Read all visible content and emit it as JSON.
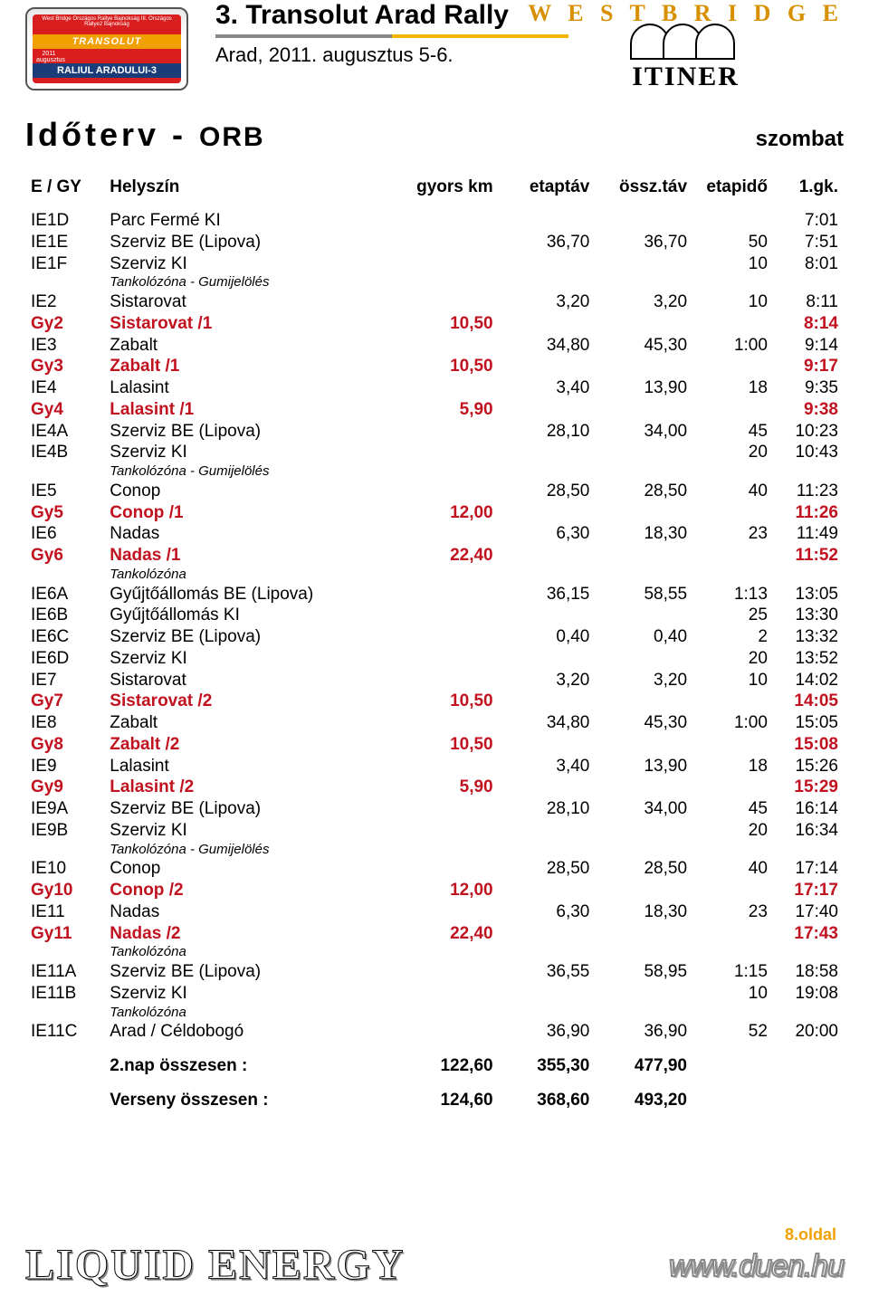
{
  "header": {
    "badge": {
      "banner": "West Bridge Országos Rallye Bajnokság III. Országos Rallye2 Bajnokság",
      "mid": "TRANSOLUT",
      "date": "2011 augusztus 5-6",
      "bottom": "RALIUL ARADULUI-3"
    },
    "event_title": "3. Transolut Arad Rally",
    "event_sub": "Arad, 2011. augusztus 5-6.",
    "wb_mark": "W E S T  B R I D G E",
    "wb_itiner": "ITINER"
  },
  "section": {
    "title_main": "Időterv",
    "title_sep": " - ",
    "title_sub": "ORB",
    "day": "szombat"
  },
  "columns": [
    "E / GY",
    "Helyszín",
    "gyors km",
    "etaptáv",
    "össz.táv",
    "etapidő",
    "1.gk."
  ],
  "rows": [
    {
      "t": "n",
      "code": "IE1D",
      "loc": "Parc Fermé KI",
      "km": "",
      "et": "",
      "ot": "",
      "ei": "",
      "gk": "7:01"
    },
    {
      "t": "n",
      "code": "IE1E",
      "loc": "Szerviz BE (Lipova)",
      "km": "",
      "et": "36,70",
      "ot": "36,70",
      "ei": "50",
      "gk": "7:51"
    },
    {
      "t": "n",
      "code": "IE1F",
      "loc": "Szerviz KI",
      "km": "",
      "et": "",
      "ot": "",
      "ei": "10",
      "gk": "8:01"
    },
    {
      "t": "note",
      "loc": "Tankolózóna - Gumijelölés"
    },
    {
      "t": "n",
      "code": "IE2",
      "loc": "Sistarovat",
      "km": "",
      "et": "3,20",
      "ot": "3,20",
      "ei": "10",
      "gk": "8:11"
    },
    {
      "t": "s",
      "code": "Gy2",
      "loc": "Sistarovat /1",
      "km": "10,50",
      "et": "",
      "ot": "",
      "ei": "",
      "gk": "8:14"
    },
    {
      "t": "n",
      "code": "IE3",
      "loc": "Zabalt",
      "km": "",
      "et": "34,80",
      "ot": "45,30",
      "ei": "1:00",
      "gk": "9:14"
    },
    {
      "t": "s",
      "code": "Gy3",
      "loc": "Zabalt /1",
      "km": "10,50",
      "et": "",
      "ot": "",
      "ei": "",
      "gk": "9:17"
    },
    {
      "t": "n",
      "code": "IE4",
      "loc": "Lalasint",
      "km": "",
      "et": "3,40",
      "ot": "13,90",
      "ei": "18",
      "gk": "9:35"
    },
    {
      "t": "s",
      "code": "Gy4",
      "loc": "Lalasint /1",
      "km": "5,90",
      "et": "",
      "ot": "",
      "ei": "",
      "gk": "9:38"
    },
    {
      "t": "n",
      "code": "IE4A",
      "loc": "Szerviz BE (Lipova)",
      "km": "",
      "et": "28,10",
      "ot": "34,00",
      "ei": "45",
      "gk": "10:23"
    },
    {
      "t": "n",
      "code": "IE4B",
      "loc": "Szerviz KI",
      "km": "",
      "et": "",
      "ot": "",
      "ei": "20",
      "gk": "10:43"
    },
    {
      "t": "note",
      "loc": "Tankolózóna - Gumijelölés"
    },
    {
      "t": "n",
      "code": "IE5",
      "loc": "Conop",
      "km": "",
      "et": "28,50",
      "ot": "28,50",
      "ei": "40",
      "gk": "11:23"
    },
    {
      "t": "s",
      "code": "Gy5",
      "loc": "Conop /1",
      "km": "12,00",
      "et": "",
      "ot": "",
      "ei": "",
      "gk": "11:26"
    },
    {
      "t": "n",
      "code": "IE6",
      "loc": "Nadas",
      "km": "",
      "et": "6,30",
      "ot": "18,30",
      "ei": "23",
      "gk": "11:49"
    },
    {
      "t": "s",
      "code": "Gy6",
      "loc": "Nadas /1",
      "km": "22,40",
      "et": "",
      "ot": "",
      "ei": "",
      "gk": "11:52"
    },
    {
      "t": "note",
      "loc": "Tankolózóna"
    },
    {
      "t": "n",
      "code": "IE6A",
      "loc": "Gyűjtőállomás BE (Lipova)",
      "km": "",
      "et": "36,15",
      "ot": "58,55",
      "ei": "1:13",
      "gk": "13:05"
    },
    {
      "t": "n",
      "code": "IE6B",
      "loc": "Gyűjtőállomás KI",
      "km": "",
      "et": "",
      "ot": "",
      "ei": "25",
      "gk": "13:30"
    },
    {
      "t": "n",
      "code": "IE6C",
      "loc": "Szerviz BE (Lipova)",
      "km": "",
      "et": "0,40",
      "ot": "0,40",
      "ei": "2",
      "gk": "13:32"
    },
    {
      "t": "n",
      "code": "IE6D",
      "loc": "Szerviz KI",
      "km": "",
      "et": "",
      "ot": "",
      "ei": "20",
      "gk": "13:52"
    },
    {
      "t": "n",
      "code": "IE7",
      "loc": "Sistarovat",
      "km": "",
      "et": "3,20",
      "ot": "3,20",
      "ei": "10",
      "gk": "14:02"
    },
    {
      "t": "s",
      "code": "Gy7",
      "loc": "Sistarovat /2",
      "km": "10,50",
      "et": "",
      "ot": "",
      "ei": "",
      "gk": "14:05"
    },
    {
      "t": "n",
      "code": "IE8",
      "loc": "Zabalt",
      "km": "",
      "et": "34,80",
      "ot": "45,30",
      "ei": "1:00",
      "gk": "15:05"
    },
    {
      "t": "s",
      "code": "Gy8",
      "loc": "Zabalt /2",
      "km": "10,50",
      "et": "",
      "ot": "",
      "ei": "",
      "gk": "15:08"
    },
    {
      "t": "n",
      "code": "IE9",
      "loc": "Lalasint",
      "km": "",
      "et": "3,40",
      "ot": "13,90",
      "ei": "18",
      "gk": "15:26"
    },
    {
      "t": "s",
      "code": "Gy9",
      "loc": "Lalasint /2",
      "km": "5,90",
      "et": "",
      "ot": "",
      "ei": "",
      "gk": "15:29"
    },
    {
      "t": "n",
      "code": "IE9A",
      "loc": "Szerviz BE (Lipova)",
      "km": "",
      "et": "28,10",
      "ot": "34,00",
      "ei": "45",
      "gk": "16:14"
    },
    {
      "t": "n",
      "code": "IE9B",
      "loc": "Szerviz KI",
      "km": "",
      "et": "",
      "ot": "",
      "ei": "20",
      "gk": "16:34"
    },
    {
      "t": "note",
      "loc": "Tankolózóna - Gumijelölés"
    },
    {
      "t": "n",
      "code": "IE10",
      "loc": "Conop",
      "km": "",
      "et": "28,50",
      "ot": "28,50",
      "ei": "40",
      "gk": "17:14"
    },
    {
      "t": "s",
      "code": "Gy10",
      "loc": "Conop /2",
      "km": "12,00",
      "et": "",
      "ot": "",
      "ei": "",
      "gk": "17:17"
    },
    {
      "t": "n",
      "code": "IE11",
      "loc": "Nadas",
      "km": "",
      "et": "6,30",
      "ot": "18,30",
      "ei": "23",
      "gk": "17:40"
    },
    {
      "t": "s",
      "code": "Gy11",
      "loc": "Nadas /2",
      "km": "22,40",
      "et": "",
      "ot": "",
      "ei": "",
      "gk": "17:43"
    },
    {
      "t": "note",
      "loc": "Tankolózóna"
    },
    {
      "t": "n",
      "code": "IE11A",
      "loc": "Szerviz BE (Lipova)",
      "km": "",
      "et": "36,55",
      "ot": "58,95",
      "ei": "1:15",
      "gk": "18:58"
    },
    {
      "t": "n",
      "code": "IE11B",
      "loc": "Szerviz KI",
      "km": "",
      "et": "",
      "ot": "",
      "ei": "10",
      "gk": "19:08"
    },
    {
      "t": "note",
      "loc": "Tankolózóna"
    },
    {
      "t": "n",
      "code": "IE11C",
      "loc": "Arad / Céldobogó",
      "km": "",
      "et": "36,90",
      "ot": "36,90",
      "ei": "52",
      "gk": "20:00"
    }
  ],
  "summary": [
    {
      "label": "2.nap összesen :",
      "km": "122,60",
      "et": "355,30",
      "ot": "477,90"
    },
    {
      "label": "Verseny összesen :",
      "km": "124,60",
      "et": "368,60",
      "ot": "493,20"
    }
  ],
  "footer": {
    "sponsor": "Liquid Energy",
    "page": "8.oldal",
    "url": "www.duen.hu"
  },
  "style": {
    "stage_color": "#c1121f",
    "text_color": "#000000",
    "accent_yellow": "#f5b400",
    "badge_red": "#d81e1e",
    "badge_blue": "#1a3d7a",
    "badge_orange": "#f0a000",
    "font_family": "Trebuchet MS",
    "body_fontsize": 19,
    "title_fontsize": 30,
    "section_fontsize": 36
  }
}
